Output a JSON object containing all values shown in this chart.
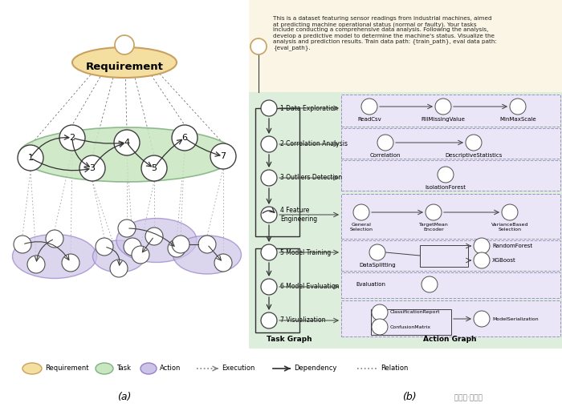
{
  "fig_width": 7.0,
  "fig_height": 5.23,
  "bg_color": "#ffffff",
  "req_ellipse_color": "#f5dfa0",
  "req_ellipse_edge": "#c8a060",
  "task_ellipse_color": "#c8e6c0",
  "task_ellipse_edge": "#80b080",
  "action_ellipse_color": "#ccc4e8",
  "action_ellipse_edge": "#9880c8",
  "right_top_bg": "#faf5e4",
  "right_bottom_bg": "#ddeedd",
  "action_box_bg": "#eae6f8",
  "action_box_edge": "#a090c8",
  "req_text": "Requirement",
  "prompt_text": "This is a dataset featuring sensor readings from industrial machines, aimed\nat predicting machine operational status (normal or faulty). Your tasks\ninclude conducting a comprehensive data analysis. Following the analysis,\ndevelop a predictive model to determine the machine's status. Visualize the\nanalysis and prediction results. Train data path: {train_path}, eval data path:\n{eval_path}.",
  "left_tasks": [
    "1 Data Exploration",
    "2 Correlation Analysis",
    "3 Outliers Detection",
    "4 Feature\nEngineering",
    "5 Model Training",
    "6 Model Evaluation",
    "7 Visualization"
  ]
}
